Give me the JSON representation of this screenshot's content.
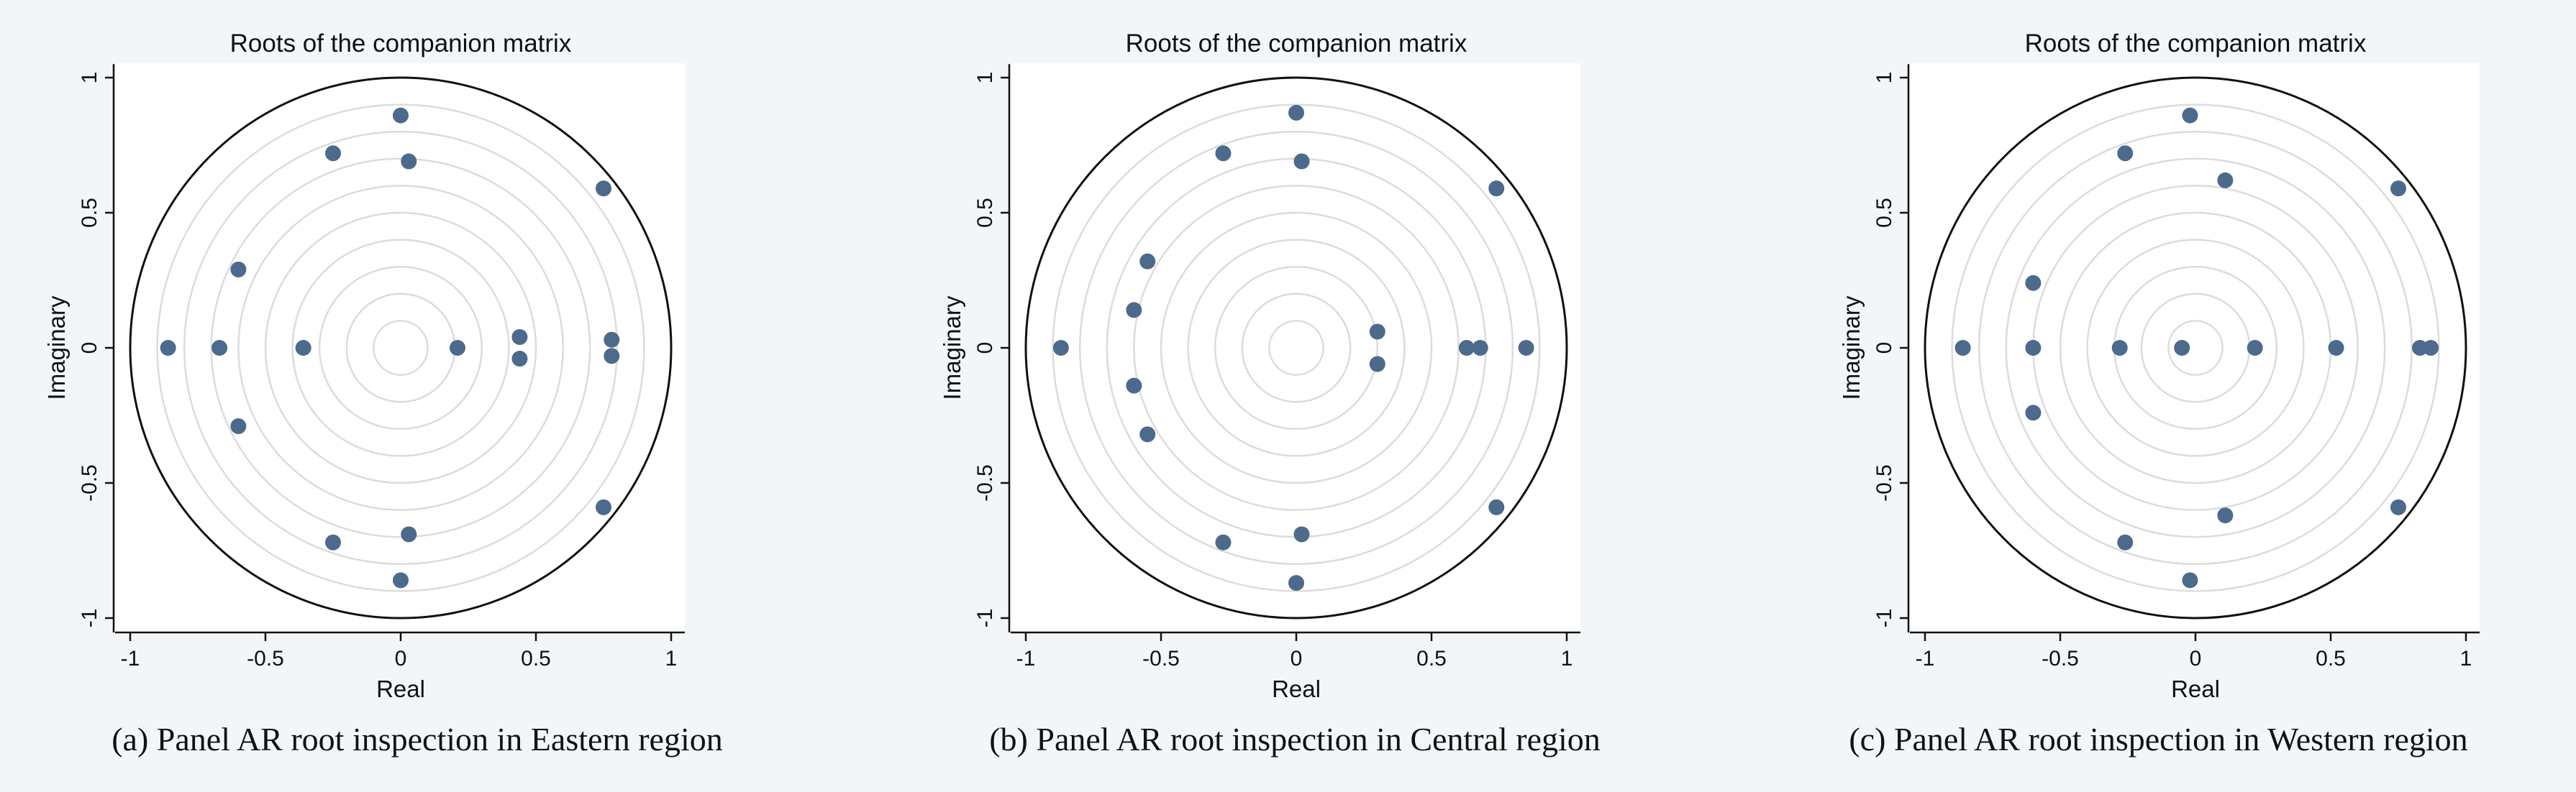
{
  "colors": {
    "background": "#f2f6f8",
    "plot_region": "#ffffff",
    "grid_circle": "#dcdcdc",
    "unit_circle": "#111111",
    "marker": "#4c6a8c"
  },
  "chart_data": [
    {
      "type": "scatter",
      "title": "Roots of the companion matrix",
      "xlabel": "Real",
      "ylabel": "Imaginary",
      "xlim": [
        -1.05,
        1.05
      ],
      "ylim": [
        -1.05,
        1.05
      ],
      "x_ticks": [
        "-1",
        "-0.5",
        "0",
        "0.5",
        "1"
      ],
      "y_ticks": [
        "-1",
        "-0.5",
        "0",
        "0.5",
        "1"
      ],
      "grid": true,
      "grid_radii": [
        0.1,
        0.2,
        0.3,
        0.4,
        0.5,
        0.6,
        0.7,
        0.8,
        0.9
      ],
      "unit_circle": true,
      "caption": "(a) Panel AR root inspection in Eastern region",
      "points": [
        {
          "x": 0.0,
          "y": 0.86
        },
        {
          "x": -0.25,
          "y": 0.72
        },
        {
          "x": 0.03,
          "y": 0.69
        },
        {
          "x": 0.75,
          "y": 0.59
        },
        {
          "x": -0.6,
          "y": 0.29
        },
        {
          "x": 0.44,
          "y": 0.04
        },
        {
          "x": 0.78,
          "y": 0.03
        },
        {
          "x": -0.86,
          "y": 0.0
        },
        {
          "x": -0.67,
          "y": 0.0
        },
        {
          "x": -0.36,
          "y": 0.0
        },
        {
          "x": 0.21,
          "y": 0.0
        },
        {
          "x": 0.44,
          "y": -0.04
        },
        {
          "x": 0.78,
          "y": -0.03
        },
        {
          "x": -0.6,
          "y": -0.29
        },
        {
          "x": 0.75,
          "y": -0.59
        },
        {
          "x": -0.25,
          "y": -0.72
        },
        {
          "x": 0.03,
          "y": -0.69
        },
        {
          "x": 0.0,
          "y": -0.86
        }
      ]
    },
    {
      "type": "scatter",
      "title": "Roots of the companion matrix",
      "xlabel": "Real",
      "ylabel": "Imaginary",
      "xlim": [
        -1.05,
        1.05
      ],
      "ylim": [
        -1.05,
        1.05
      ],
      "x_ticks": [
        "-1",
        "-0.5",
        "0",
        "0.5",
        "1"
      ],
      "y_ticks": [
        "-1",
        "-0.5",
        "0",
        "0.5",
        "1"
      ],
      "grid": true,
      "grid_radii": [
        0.1,
        0.2,
        0.3,
        0.4,
        0.5,
        0.6,
        0.7,
        0.8,
        0.9
      ],
      "unit_circle": true,
      "caption": "(b) Panel AR root inspection in Central region",
      "points": [
        {
          "x": 0.0,
          "y": 0.87
        },
        {
          "x": -0.27,
          "y": 0.72
        },
        {
          "x": 0.02,
          "y": 0.69
        },
        {
          "x": 0.74,
          "y": 0.59
        },
        {
          "x": -0.55,
          "y": 0.32
        },
        {
          "x": -0.6,
          "y": 0.14
        },
        {
          "x": 0.3,
          "y": 0.06
        },
        {
          "x": -0.87,
          "y": 0.0
        },
        {
          "x": 0.63,
          "y": 0.0
        },
        {
          "x": 0.68,
          "y": 0.0
        },
        {
          "x": 0.85,
          "y": 0.0
        },
        {
          "x": 0.3,
          "y": -0.06
        },
        {
          "x": -0.6,
          "y": -0.14
        },
        {
          "x": -0.55,
          "y": -0.32
        },
        {
          "x": 0.74,
          "y": -0.59
        },
        {
          "x": -0.27,
          "y": -0.72
        },
        {
          "x": 0.02,
          "y": -0.69
        },
        {
          "x": 0.0,
          "y": -0.87
        }
      ]
    },
    {
      "type": "scatter",
      "title": "Roots of the companion matrix",
      "xlabel": "Real",
      "ylabel": "Imaginary",
      "xlim": [
        -1.05,
        1.05
      ],
      "ylim": [
        -1.05,
        1.05
      ],
      "x_ticks": [
        "-1",
        "-0.5",
        "0",
        "0.5",
        "1"
      ],
      "y_ticks": [
        "-1",
        "-0.5",
        "0",
        "0.5",
        "1"
      ],
      "grid": true,
      "grid_radii": [
        0.1,
        0.2,
        0.3,
        0.4,
        0.5,
        0.6,
        0.7,
        0.8,
        0.9
      ],
      "unit_circle": true,
      "caption": "(c) Panel AR root inspection in Western region",
      "points": [
        {
          "x": -0.02,
          "y": 0.86
        },
        {
          "x": -0.26,
          "y": 0.72
        },
        {
          "x": 0.11,
          "y": 0.62
        },
        {
          "x": 0.75,
          "y": 0.59
        },
        {
          "x": -0.6,
          "y": 0.24
        },
        {
          "x": -0.86,
          "y": 0.0
        },
        {
          "x": -0.6,
          "y": 0.0
        },
        {
          "x": -0.28,
          "y": 0.0
        },
        {
          "x": -0.05,
          "y": 0.0
        },
        {
          "x": 0.22,
          "y": 0.0
        },
        {
          "x": 0.52,
          "y": 0.0
        },
        {
          "x": 0.83,
          "y": 0.0
        },
        {
          "x": 0.87,
          "y": 0.0
        },
        {
          "x": -0.6,
          "y": -0.24
        },
        {
          "x": 0.75,
          "y": -0.59
        },
        {
          "x": 0.11,
          "y": -0.62
        },
        {
          "x": -0.26,
          "y": -0.72
        },
        {
          "x": -0.02,
          "y": -0.86
        }
      ]
    }
  ]
}
